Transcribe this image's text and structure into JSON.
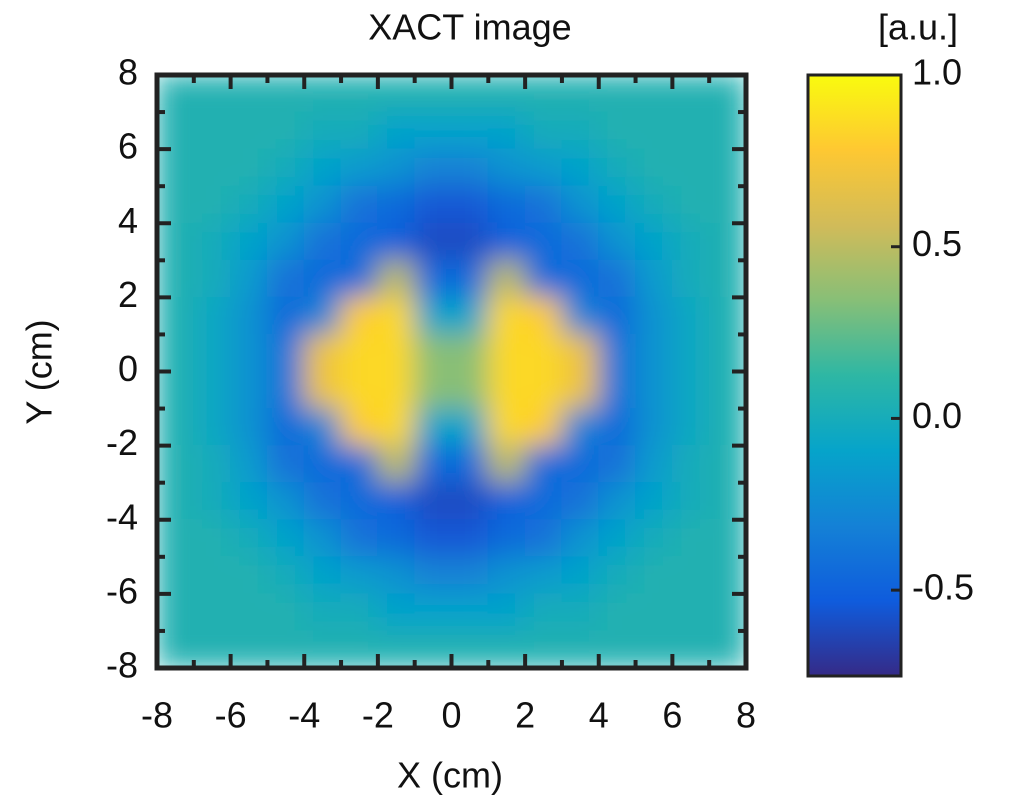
{
  "chart_data": {
    "type": "heatmap",
    "title": "XACT image",
    "x_label": "X (cm)",
    "y_label": "Y (cm)",
    "xlim": [
      -8,
      8
    ],
    "ylim": [
      -8,
      8
    ],
    "xticks": [
      -8,
      -6,
      -4,
      -2,
      0,
      2,
      4,
      6,
      8
    ],
    "yticks": [
      -8,
      -6,
      -4,
      -2,
      0,
      2,
      4,
      6,
      8
    ],
    "minorticks": [
      -7,
      -5,
      -3,
      -1,
      1,
      3,
      5,
      7
    ],
    "z": [
      [
        0.05,
        0.05,
        0.05,
        0.05,
        0.05,
        0.05,
        0.05,
        0.05,
        0.05,
        0.05,
        0.05,
        0.05,
        0.05,
        0.05,
        0.05,
        0.05
      ],
      [
        0.05,
        0.05,
        0.05,
        0.05,
        0,
        0,
        -0.1,
        -0.1,
        -0.1,
        -0.1,
        0,
        0,
        0.05,
        0.05,
        0.05,
        0.05
      ],
      [
        0.05,
        0.05,
        0.05,
        0,
        -0.1,
        -0.15,
        -0.2,
        -0.3,
        -0.3,
        -0.2,
        -0.15,
        -0.1,
        0,
        0.05,
        0.05,
        0.05
      ],
      [
        0.05,
        0.05,
        0,
        -0.1,
        -0.2,
        -0.4,
        -0.45,
        -0.55,
        -0.55,
        -0.45,
        -0.4,
        -0.2,
        -0.1,
        0,
        0.05,
        0.05
      ],
      [
        0.05,
        0,
        -0.1,
        -0.2,
        -0.4,
        -0.45,
        -0.5,
        -0.6,
        -0.6,
        -0.5,
        -0.45,
        -0.4,
        -0.2,
        -0.1,
        0,
        0.05
      ],
      [
        0.05,
        0,
        -0.15,
        -0.4,
        -0.45,
        -0.45,
        0.5,
        -0.45,
        -0.45,
        0.5,
        -0.45,
        -0.45,
        -0.4,
        -0.15,
        0,
        0.05
      ],
      [
        0.05,
        -0.05,
        -0.2,
        -0.45,
        -0.3,
        0.8,
        0.85,
        -0.1,
        -0.1,
        0.85,
        0.8,
        -0.3,
        -0.45,
        -0.2,
        -0.05,
        0.05
      ],
      [
        0.05,
        -0.05,
        -0.2,
        -0.4,
        0.7,
        0.85,
        0.85,
        0.35,
        0.35,
        0.85,
        0.85,
        0.7,
        -0.4,
        -0.2,
        -0.05,
        0.05
      ],
      [
        0.05,
        -0.05,
        -0.2,
        -0.4,
        0.7,
        0.85,
        0.85,
        0.35,
        0.35,
        0.85,
        0.85,
        0.7,
        -0.4,
        -0.2,
        -0.05,
        0.05
      ],
      [
        0.05,
        -0.05,
        -0.2,
        -0.45,
        -0.3,
        0.8,
        0.85,
        -0.1,
        -0.1,
        0.85,
        0.8,
        -0.3,
        -0.45,
        -0.2,
        -0.05,
        0.05
      ],
      [
        0.05,
        0,
        -0.15,
        -0.4,
        -0.45,
        -0.45,
        0.5,
        -0.45,
        -0.45,
        0.5,
        -0.45,
        -0.45,
        -0.4,
        -0.15,
        0,
        0.05
      ],
      [
        0.05,
        0,
        -0.1,
        -0.2,
        -0.4,
        -0.45,
        -0.5,
        -0.6,
        -0.6,
        -0.5,
        -0.45,
        -0.4,
        -0.2,
        -0.1,
        0,
        0.05
      ],
      [
        0.05,
        0.05,
        0,
        -0.1,
        -0.2,
        -0.4,
        -0.45,
        -0.55,
        -0.55,
        -0.45,
        -0.4,
        -0.2,
        -0.1,
        0,
        0.05,
        0.05
      ],
      [
        0.05,
        0.05,
        0.05,
        0,
        -0.1,
        -0.15,
        -0.2,
        -0.3,
        -0.3,
        -0.2,
        -0.15,
        -0.1,
        0,
        0.05,
        0.05,
        0.05
      ],
      [
        0.05,
        0.05,
        0.05,
        0.05,
        0,
        0,
        -0.1,
        -0.1,
        -0.1,
        -0.1,
        0,
        0,
        0.05,
        0.05,
        0.05,
        0.05
      ],
      [
        0.05,
        0.05,
        0.05,
        0.05,
        0.05,
        0.05,
        0.05,
        0.05,
        0.05,
        0.05,
        0.05,
        0.05,
        0.05,
        0.05,
        0.05,
        0.05
      ]
    ],
    "colorbar_label": "[a.u.]",
    "clim": [
      -0.75,
      1.0
    ],
    "cticks": [
      -0.5,
      {
        "value": 0,
        "label": "0.0"
      },
      0.5,
      {
        "value": 1,
        "label": "1.0"
      }
    ],
    "colormap": [
      "#352a87",
      "#0f5cdd",
      "#1481d6",
      "#06a4ca",
      "#2eb7a4",
      "#87bf77",
      "#d1bb59",
      "#fec832",
      "#f9fb0e"
    ]
  }
}
